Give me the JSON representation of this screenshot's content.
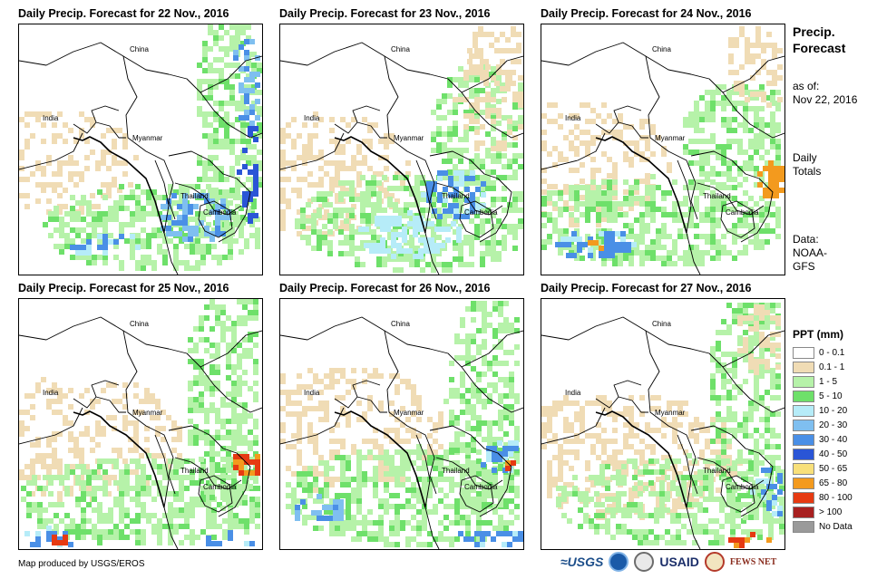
{
  "panels": [
    {
      "title": "Daily Precip. Forecast for 22 Nov., 2016",
      "seed": 22
    },
    {
      "title": "Daily Precip. Forecast for 23 Nov., 2016",
      "seed": 23
    },
    {
      "title": "Daily Precip. Forecast for 24 Nov., 2016",
      "seed": 24
    },
    {
      "title": "Daily Precip. Forecast for 25 Nov., 2016",
      "seed": 25
    },
    {
      "title": "Daily Precip. Forecast for 26 Nov., 2016",
      "seed": 26
    },
    {
      "title": "Daily Precip. Forecast for 27 Nov., 2016",
      "seed": 27
    }
  ],
  "map_labels": {
    "china": "China",
    "india": "India",
    "myanmar": "Myanmar",
    "thailand": "Thailand",
    "cambodia": "Cambodia"
  },
  "side": {
    "title_line1": "Precip.",
    "title_line2": "Forecast",
    "asof_line1": "as of:",
    "asof_line2": "Nov 22, 2016",
    "daily_line1": "Daily",
    "daily_line2": "Totals",
    "data_line1": "Data:",
    "data_line2": "NOAA-",
    "data_line3": "GFS"
  },
  "legend": {
    "title": "PPT (mm)",
    "items": [
      {
        "label": "0 - 0.1",
        "color": "#ffffff"
      },
      {
        "label": "0.1 - 1",
        "color": "#f0dcb5"
      },
      {
        "label": "1 - 5",
        "color": "#b6f2a9"
      },
      {
        "label": "5 - 10",
        "color": "#6ee06a"
      },
      {
        "label": "10 - 20",
        "color": "#b6ecf8"
      },
      {
        "label": "20 - 30",
        "color": "#7fbff0"
      },
      {
        "label": "30 - 40",
        "color": "#4a8fe6"
      },
      {
        "label": "40 - 50",
        "color": "#2a55d6"
      },
      {
        "label": "50 - 65",
        "color": "#f8e07a"
      },
      {
        "label": "65 - 80",
        "color": "#f39a1e"
      },
      {
        "label": "80 - 100",
        "color": "#e63a12"
      },
      {
        "label": "> 100",
        "color": "#a82020"
      },
      {
        "label": "No Data",
        "color": "#9a9a9a"
      }
    ]
  },
  "credit": "Map produced by USGS/EROS",
  "logos": {
    "usgs": "≈USGS",
    "usaid": "USAID",
    "fews": "FEWS NET"
  }
}
